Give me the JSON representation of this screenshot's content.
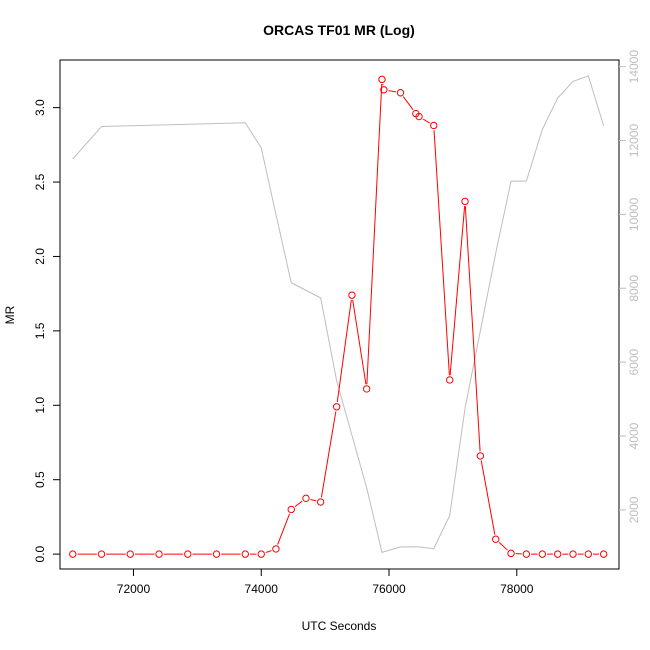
{
  "chart_data": {
    "type": "line",
    "title": "ORCAS TF01 MR (Log)",
    "xlabel": "UTC Seconds",
    "ylabel": "MR",
    "xlim": [
      70850,
      79600
    ],
    "ylim": [
      -0.1,
      3.32
    ],
    "y2lim": [
      400,
      14180
    ],
    "x_ticks": [
      72000,
      74000,
      76000,
      78000
    ],
    "y_ticks": [
      0.0,
      0.5,
      1.0,
      1.5,
      2.0,
      2.5,
      3.0
    ],
    "y_tick_labels": [
      "0.0",
      "0.5",
      "1.0",
      "1.5",
      "2.0",
      "2.5",
      "3.0"
    ],
    "y2_ticks": [
      2000,
      4000,
      6000,
      8000,
      10000,
      12000,
      14000
    ],
    "y2_tick_labels": [
      "2000",
      "4000",
      "6000",
      "8000",
      "10000",
      "12000",
      "14000"
    ],
    "colors": {
      "mr": "#ff0000",
      "secondary": "#bebebe",
      "axes": "#000000"
    },
    "series": [
      {
        "axis": "left",
        "style": "line+circle",
        "x": [
          71050,
          71500,
          71950,
          72400,
          72850,
          73300,
          73750,
          74000,
          74230,
          74470,
          74700,
          74930,
          75180,
          75420,
          75650,
          75890,
          75920,
          76180,
          76420,
          76470,
          76700,
          76950,
          77190,
          77430,
          77670,
          77910,
          78150,
          78400,
          78640,
          78880,
          79120,
          79360
        ],
        "values": [
          0.0,
          0.0,
          0.0,
          0.0,
          0.0,
          0.0,
          0.0,
          0.0,
          0.035,
          0.3,
          0.375,
          0.35,
          0.99,
          1.74,
          1.11,
          3.19,
          3.12,
          3.1,
          2.96,
          2.94,
          2.88,
          1.17,
          2.37,
          0.66,
          0.1,
          0.005,
          0.0,
          0.0,
          0.0,
          0.0,
          0.0,
          0.0
        ]
      },
      {
        "axis": "right",
        "style": "line",
        "x": [
          71050,
          71500,
          73750,
          74000,
          74230,
          74470,
          74930,
          75180,
          75650,
          75890,
          76180,
          76470,
          76700,
          76950,
          77190,
          77670,
          77910,
          78150,
          78400,
          78640,
          78880,
          79120,
          79360
        ],
        "values": [
          11500,
          12380,
          12480,
          11800,
          10000,
          8150,
          7740,
          5500,
          2600,
          850,
          1000,
          1000,
          950,
          1850,
          4750,
          8950,
          10900,
          10900,
          12300,
          13150,
          13600,
          13750,
          12400
        ]
      }
    ]
  }
}
